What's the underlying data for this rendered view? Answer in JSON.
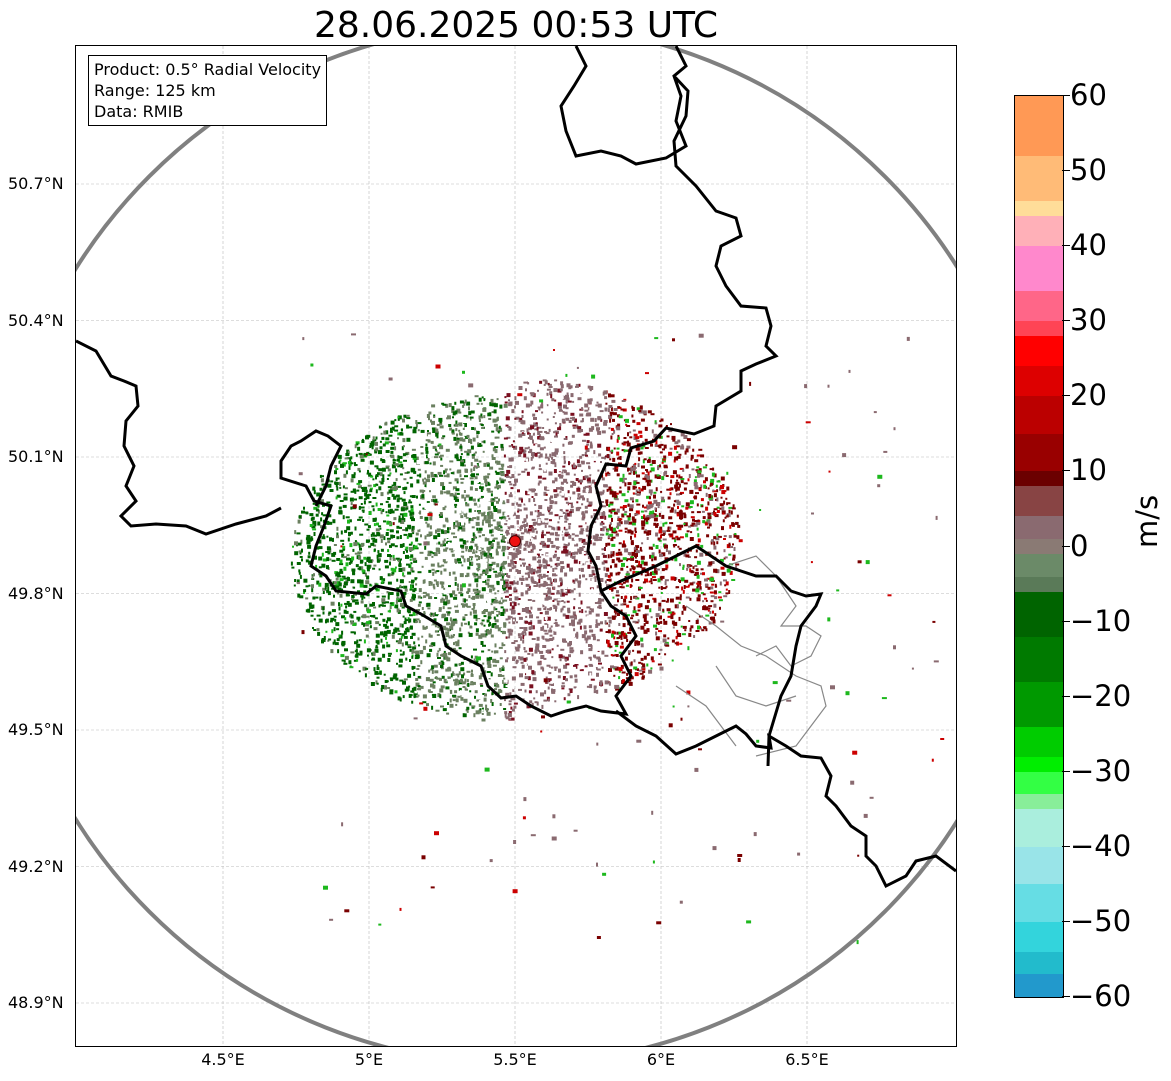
{
  "title": "28.06.2025 00:53 UTC",
  "info": {
    "product": "Product: 0.5° Radial Velocity",
    "range": "Range: 125 km",
    "data": "Data: RMIB"
  },
  "lat_labels": [
    "50.7°N",
    "50.4°N",
    "50.1°N",
    "49.8°N",
    "49.5°N",
    "49.2°N",
    "48.9°N"
  ],
  "lat_values": [
    50.7,
    50.4,
    50.1,
    49.8,
    49.5,
    49.2,
    48.9
  ],
  "lon_labels": [
    "4.5°E",
    "5°E",
    "5.5°E",
    "6°E",
    "6.5°E"
  ],
  "lon_values": [
    4.5,
    5.0,
    5.5,
    6.0,
    6.5
  ],
  "colorbar": {
    "unit": "m/s",
    "min": -60,
    "max": 60,
    "tick_labels": [
      "60",
      "50",
      "40",
      "30",
      "20",
      "10",
      "0",
      "−10",
      "−20",
      "−30",
      "−40",
      "−50",
      "−60"
    ],
    "tick_values": [
      60,
      50,
      40,
      30,
      20,
      10,
      0,
      -10,
      -20,
      -30,
      -40,
      -50,
      -60
    ]
  },
  "colors": {
    "receding_dark": "#7a0000",
    "receding": "#cc0000",
    "near_zero_pos": "#8a6a70",
    "near_zero_neg": "#6b8060",
    "approaching_dark": "#006400",
    "approaching": "#1db81d",
    "range_ring": "#808080",
    "border": "#000000",
    "radar_site": "#ee1111"
  },
  "radar_site": {
    "lon": 5.5,
    "lat": 49.915
  }
}
